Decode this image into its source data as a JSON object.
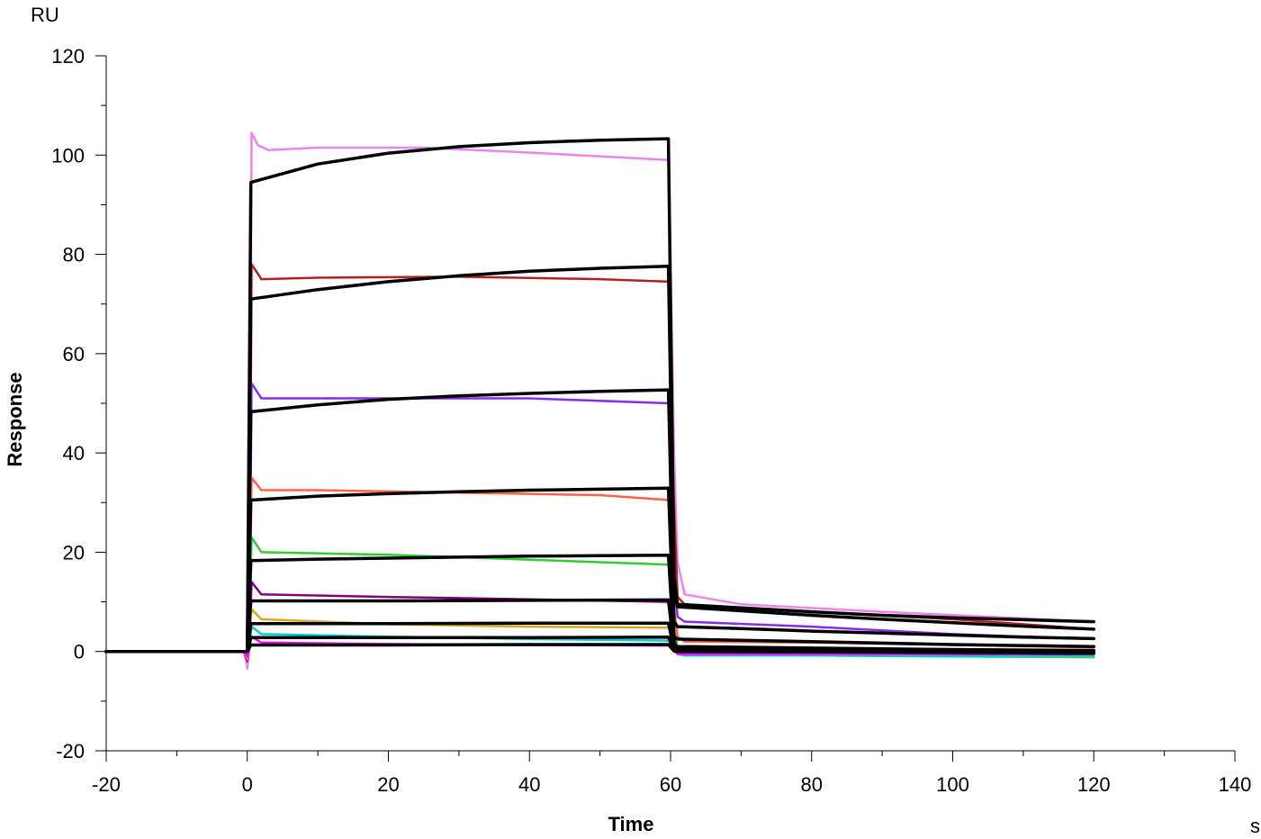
{
  "chart_data": {
    "type": "line",
    "title": "",
    "xlabel": "Time",
    "ylabel": "Response",
    "x_unit": "s",
    "y_unit": "RU",
    "xlim": [
      -20,
      140
    ],
    "ylim": [
      -20,
      120
    ],
    "x_ticks": [
      -20,
      0,
      20,
      40,
      60,
      80,
      100,
      120,
      140
    ],
    "y_ticks": [
      -20,
      0,
      20,
      40,
      60,
      80,
      100,
      120
    ],
    "grid": false,
    "legend": "none",
    "series": [
      {
        "color": "#ee82ee",
        "kind": "measured",
        "points": [
          [
            -20,
            0
          ],
          [
            -0.5,
            0
          ],
          [
            -0.2,
            -1.5
          ],
          [
            0,
            -3.5
          ],
          [
            0.3,
            1.5
          ],
          [
            0.6,
            104.5
          ],
          [
            1.5,
            102
          ],
          [
            3,
            101
          ],
          [
            10,
            101.5
          ],
          [
            25,
            101.5
          ],
          [
            40,
            100.5
          ],
          [
            59.8,
            99
          ],
          [
            60.1,
            70
          ],
          [
            60.5,
            40
          ],
          [
            61,
            18
          ],
          [
            62,
            11.5
          ],
          [
            70,
            9.5
          ],
          [
            90,
            8
          ],
          [
            105,
            7
          ],
          [
            120,
            6
          ]
        ]
      },
      {
        "color": "#b22222",
        "kind": "measured",
        "points": [
          [
            -20,
            0
          ],
          [
            -0.5,
            0
          ],
          [
            0,
            -2
          ],
          [
            0.3,
            1
          ],
          [
            0.6,
            78
          ],
          [
            2,
            75
          ],
          [
            10,
            75.3
          ],
          [
            30,
            75.5
          ],
          [
            50,
            75
          ],
          [
            59.8,
            74.5
          ],
          [
            60.2,
            40
          ],
          [
            61,
            11
          ],
          [
            62,
            9.5
          ],
          [
            80,
            8
          ],
          [
            100,
            6.5
          ],
          [
            120,
            4.5
          ]
        ]
      },
      {
        "color": "#8a2be2",
        "kind": "measured",
        "points": [
          [
            -20,
            0
          ],
          [
            -0.5,
            0
          ],
          [
            0,
            -2
          ],
          [
            0.3,
            1
          ],
          [
            0.6,
            54
          ],
          [
            2,
            51
          ],
          [
            20,
            51
          ],
          [
            40,
            51
          ],
          [
            59.8,
            50
          ],
          [
            60.2,
            20
          ],
          [
            61,
            7
          ],
          [
            62,
            6
          ],
          [
            80,
            5
          ],
          [
            100,
            3.5
          ],
          [
            120,
            2.5
          ]
        ]
      },
      {
        "color": "#ff6347",
        "kind": "measured",
        "points": [
          [
            -20,
            0
          ],
          [
            -0.5,
            0
          ],
          [
            0,
            -1.5
          ],
          [
            0.3,
            1
          ],
          [
            0.6,
            35
          ],
          [
            2,
            32.5
          ],
          [
            10,
            32.5
          ],
          [
            30,
            32
          ],
          [
            50,
            31.5
          ],
          [
            59.8,
            30.5
          ],
          [
            60.2,
            12
          ],
          [
            61,
            3
          ],
          [
            62,
            2
          ],
          [
            80,
            1.8
          ],
          [
            100,
            1.3
          ],
          [
            120,
            0.8
          ]
        ]
      },
      {
        "color": "#32cd32",
        "kind": "measured",
        "points": [
          [
            -20,
            0
          ],
          [
            -0.5,
            0
          ],
          [
            0,
            -1
          ],
          [
            0.3,
            1
          ],
          [
            0.6,
            23
          ],
          [
            2,
            20
          ],
          [
            20,
            19.5
          ],
          [
            40,
            18.5
          ],
          [
            59.8,
            17.5
          ],
          [
            60.2,
            6
          ],
          [
            61,
            1
          ],
          [
            62,
            0.5
          ],
          [
            80,
            0.2
          ],
          [
            100,
            -0.2
          ],
          [
            120,
            -0.5
          ]
        ]
      },
      {
        "color": "#800080",
        "kind": "measured",
        "points": [
          [
            -20,
            0
          ],
          [
            -0.5,
            0
          ],
          [
            0,
            -1
          ],
          [
            0.3,
            1
          ],
          [
            0.6,
            14
          ],
          [
            2,
            11.5
          ],
          [
            20,
            11
          ],
          [
            40,
            10.5
          ],
          [
            59.8,
            10
          ],
          [
            60.2,
            4
          ],
          [
            61,
            0.5
          ],
          [
            62,
            0
          ],
          [
            80,
            -0.3
          ],
          [
            100,
            -0.6
          ],
          [
            120,
            -1
          ]
        ]
      },
      {
        "color": "#daa520",
        "kind": "measured",
        "points": [
          [
            -20,
            0
          ],
          [
            -0.5,
            0
          ],
          [
            0,
            -1
          ],
          [
            0.3,
            1
          ],
          [
            0.6,
            8.5
          ],
          [
            2,
            6.5
          ],
          [
            20,
            5.5
          ],
          [
            40,
            5
          ],
          [
            59.8,
            4.8
          ],
          [
            60.2,
            2
          ],
          [
            61,
            0
          ],
          [
            62,
            -0.5
          ],
          [
            80,
            -0.8
          ],
          [
            100,
            -1
          ],
          [
            120,
            -1.2
          ]
        ]
      },
      {
        "color": "#00ced1",
        "kind": "measured",
        "points": [
          [
            -20,
            0
          ],
          [
            -0.5,
            0
          ],
          [
            0,
            -1
          ],
          [
            0.3,
            1
          ],
          [
            0.6,
            5
          ],
          [
            2,
            3.5
          ],
          [
            20,
            3
          ],
          [
            40,
            2.5
          ],
          [
            59.8,
            2.2
          ],
          [
            60.2,
            1
          ],
          [
            61,
            -0.5
          ],
          [
            62,
            -0.8
          ],
          [
            80,
            -0.8
          ],
          [
            100,
            -1
          ],
          [
            120,
            -1
          ]
        ]
      },
      {
        "color": "#ff00ff",
        "kind": "measured",
        "points": [
          [
            -20,
            0
          ],
          [
            -0.5,
            0
          ],
          [
            0,
            -1
          ],
          [
            0.3,
            1
          ],
          [
            0.6,
            3
          ],
          [
            2,
            1.8
          ],
          [
            20,
            1.5
          ],
          [
            40,
            1.3
          ],
          [
            59.8,
            1.2
          ],
          [
            60.2,
            0.5
          ],
          [
            61,
            -0.5
          ],
          [
            62,
            -0.5
          ],
          [
            80,
            -0.5
          ],
          [
            100,
            -0.5
          ],
          [
            120,
            -0.5
          ]
        ]
      },
      {
        "color": "#000000",
        "kind": "fit",
        "points": [
          [
            -20,
            0
          ],
          [
            0,
            0
          ],
          [
            0.5,
            94.5
          ],
          [
            10,
            98.2
          ],
          [
            20,
            100.4
          ],
          [
            30,
            101.7
          ],
          [
            40,
            102.5
          ],
          [
            50,
            103
          ],
          [
            59.7,
            103.3
          ],
          [
            60.5,
            15
          ],
          [
            61,
            9.5
          ],
          [
            70,
            8.8
          ],
          [
            80,
            8
          ],
          [
            90,
            7.3
          ],
          [
            100,
            6.8
          ],
          [
            110,
            6.4
          ],
          [
            120,
            6
          ]
        ]
      },
      {
        "color": "#000000",
        "kind": "fit",
        "points": [
          [
            -20,
            0
          ],
          [
            0,
            0
          ],
          [
            0.5,
            71
          ],
          [
            10,
            72.9
          ],
          [
            20,
            74.5
          ],
          [
            30,
            75.7
          ],
          [
            40,
            76.6
          ],
          [
            50,
            77.2
          ],
          [
            59.7,
            77.6
          ],
          [
            60.5,
            12
          ],
          [
            61,
            9
          ],
          [
            70,
            8.2
          ],
          [
            80,
            7.3
          ],
          [
            90,
            6.5
          ],
          [
            100,
            5.8
          ],
          [
            110,
            5.1
          ],
          [
            120,
            4.5
          ]
        ]
      },
      {
        "color": "#000000",
        "kind": "fit",
        "points": [
          [
            -20,
            0
          ],
          [
            0,
            0
          ],
          [
            0.5,
            48.3
          ],
          [
            10,
            49.7
          ],
          [
            20,
            50.8
          ],
          [
            30,
            51.5
          ],
          [
            40,
            52
          ],
          [
            50,
            52.4
          ],
          [
            59.7,
            52.7
          ],
          [
            60.5,
            6
          ],
          [
            61,
            5
          ],
          [
            70,
            4.6
          ],
          [
            80,
            4.1
          ],
          [
            90,
            3.7
          ],
          [
            100,
            3.3
          ],
          [
            110,
            2.9
          ],
          [
            120,
            2.6
          ]
        ]
      },
      {
        "color": "#000000",
        "kind": "fit",
        "points": [
          [
            -20,
            0
          ],
          [
            0,
            0
          ],
          [
            0.5,
            30.5
          ],
          [
            10,
            31.3
          ],
          [
            20,
            31.8
          ],
          [
            30,
            32.2
          ],
          [
            40,
            32.5
          ],
          [
            50,
            32.7
          ],
          [
            59.7,
            32.9
          ],
          [
            60.5,
            3
          ],
          [
            61,
            2.5
          ],
          [
            80,
            2
          ],
          [
            100,
            1.4
          ],
          [
            120,
            1
          ]
        ]
      },
      {
        "color": "#000000",
        "kind": "fit",
        "points": [
          [
            -20,
            0
          ],
          [
            0,
            0
          ],
          [
            0.5,
            18.3
          ],
          [
            10,
            18.6
          ],
          [
            20,
            18.8
          ],
          [
            30,
            19
          ],
          [
            40,
            19.2
          ],
          [
            50,
            19.3
          ],
          [
            59.7,
            19.4
          ],
          [
            60.5,
            1.2
          ],
          [
            61,
            1
          ],
          [
            80,
            0.7
          ],
          [
            100,
            0.4
          ],
          [
            120,
            0.2
          ]
        ]
      },
      {
        "color": "#000000",
        "kind": "fit",
        "points": [
          [
            -20,
            0
          ],
          [
            0,
            0
          ],
          [
            0.5,
            10.2
          ],
          [
            20,
            10.2
          ],
          [
            40,
            10.3
          ],
          [
            59.7,
            10.4
          ],
          [
            60.5,
            0.6
          ],
          [
            61,
            0.5
          ],
          [
            80,
            0.2
          ],
          [
            100,
            0
          ],
          [
            120,
            -0.2
          ]
        ]
      },
      {
        "color": "#000000",
        "kind": "fit",
        "points": [
          [
            -20,
            0
          ],
          [
            0,
            0
          ],
          [
            0.5,
            5.6
          ],
          [
            20,
            5.6
          ],
          [
            40,
            5.7
          ],
          [
            59.7,
            5.7
          ],
          [
            60.5,
            0.5
          ],
          [
            61,
            0.3
          ],
          [
            80,
            0
          ],
          [
            100,
            -0.2
          ],
          [
            120,
            -0.4
          ]
        ]
      },
      {
        "color": "#000000",
        "kind": "fit",
        "points": [
          [
            -20,
            0
          ],
          [
            0,
            0
          ],
          [
            0.5,
            2.8
          ],
          [
            20,
            2.8
          ],
          [
            40,
            2.8
          ],
          [
            59.7,
            2.9
          ],
          [
            60.5,
            0.2
          ],
          [
            61,
            0.1
          ],
          [
            80,
            0
          ],
          [
            100,
            -0.2
          ],
          [
            120,
            -0.3
          ]
        ]
      },
      {
        "color": "#000000",
        "kind": "fit",
        "points": [
          [
            -20,
            0
          ],
          [
            0,
            0
          ],
          [
            0.5,
            1.3
          ],
          [
            20,
            1.3
          ],
          [
            40,
            1.4
          ],
          [
            59.7,
            1.4
          ],
          [
            60.5,
            0.1
          ],
          [
            61,
            0
          ],
          [
            80,
            -0.1
          ],
          [
            100,
            -0.2
          ],
          [
            120,
            -0.3
          ]
        ]
      }
    ]
  }
}
